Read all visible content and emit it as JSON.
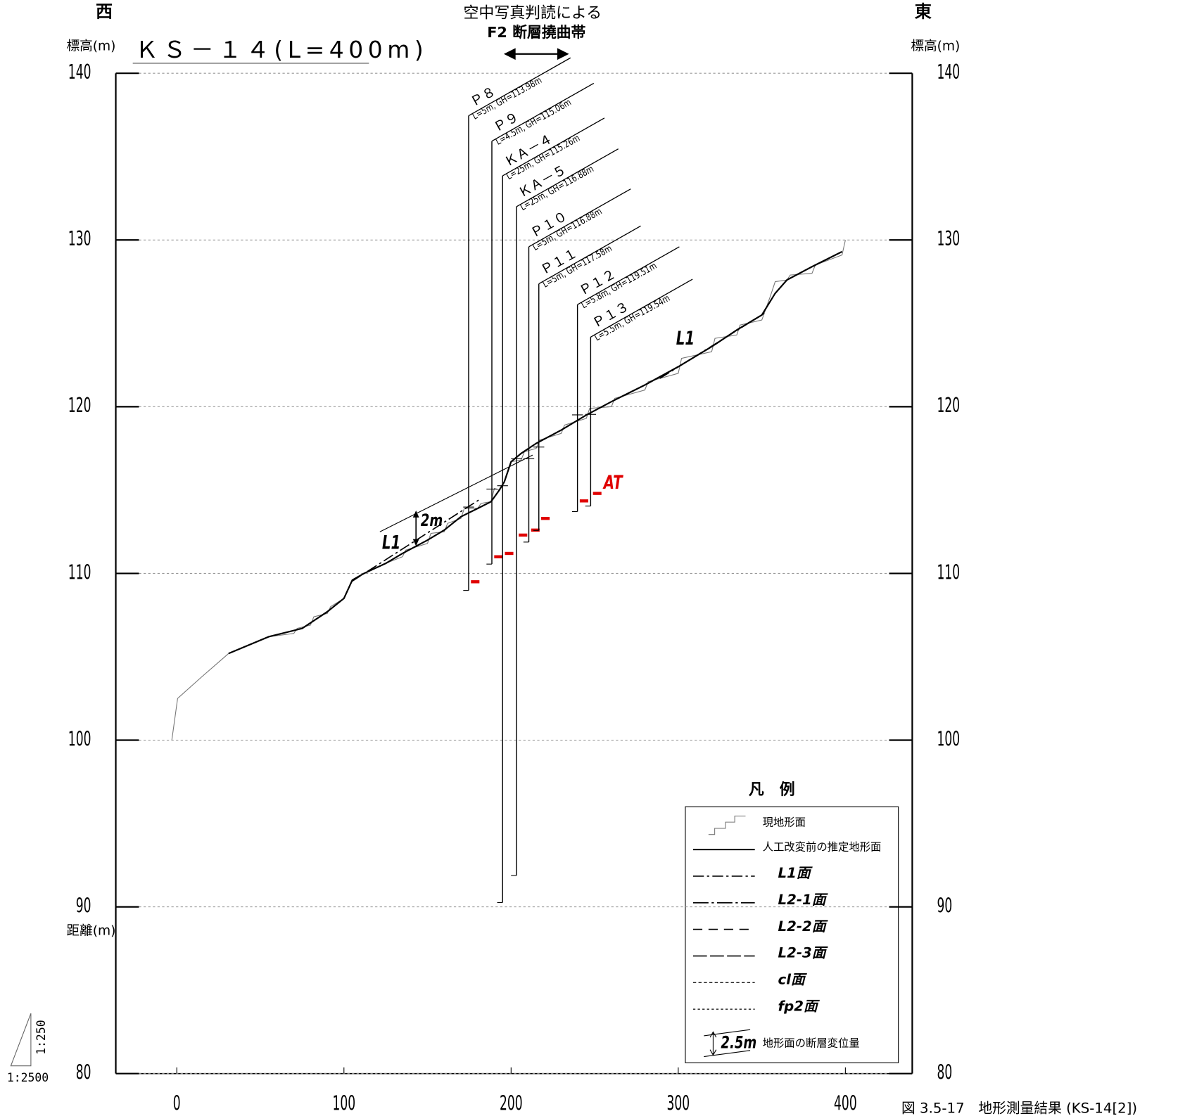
{
  "chart_data": {
    "type": "profile",
    "title": "ＫＳ－１４(L=400m)",
    "west": "西",
    "east": "東",
    "ylabel": "標高(m)",
    "y2label": "標高(m)",
    "xlabel": "距離(m)",
    "xlim": [
      -36.5,
      440
    ],
    "xticks": [
      0,
      100,
      200,
      300,
      400
    ],
    "ylim": [
      80,
      140
    ],
    "yticks": [
      80,
      90,
      100,
      110,
      120,
      130,
      140
    ],
    "grid": true,
    "series": [
      {
        "name": "現地形面",
        "style": "thin",
        "color": "#777777",
        "x": [
          -3,
          0.5,
          15,
          31,
          55,
          70,
          72,
          80,
          82,
          90,
          92,
          100,
          105,
          112,
          125,
          135,
          137,
          150,
          152,
          160,
          162,
          170,
          172,
          180,
          182,
          188,
          190,
          193,
          196,
          200,
          206,
          208,
          215,
          217,
          230,
          232,
          245,
          247,
          260,
          262,
          280,
          282,
          300,
          302,
          320,
          322,
          335,
          337,
          350,
          355,
          358,
          365,
          367,
          380,
          382,
          398,
          400
        ],
        "values": [
          100,
          102.5,
          103.8,
          105.2,
          106.2,
          106.4,
          106.7,
          106.9,
          107.4,
          107.6,
          108.0,
          108.5,
          109.6,
          110.0,
          110.6,
          111.0,
          111.4,
          111.8,
          112.4,
          112.5,
          113.0,
          113.3,
          113.9,
          113.9,
          114.2,
          114.3,
          115.1,
          115.0,
          115.5,
          116.7,
          116.8,
          117.3,
          117.5,
          118.0,
          118.4,
          118.9,
          119.3,
          119.9,
          120.0,
          120.5,
          121.0,
          121.5,
          122.0,
          122.9,
          123.3,
          124.1,
          124.3,
          124.9,
          125.2,
          126.6,
          127.5,
          127.6,
          127.9,
          128.0,
          128.5,
          129.1,
          130.0
        ]
      },
      {
        "name": "人工改変前の推定地形面",
        "style": "solid",
        "color": "#000000",
        "x": [
          31,
          55,
          75,
          90,
          100,
          105,
          112,
          125,
          135,
          150,
          160,
          170,
          180,
          188,
          193,
          196,
          200,
          206,
          215,
          230,
          245,
          260,
          280,
          300,
          320,
          335,
          350,
          358,
          365,
          380,
          398
        ],
        "values": [
          105.2,
          106.2,
          106.7,
          107.7,
          108.5,
          109.6,
          110.0,
          110.6,
          111.2,
          112.0,
          112.6,
          113.4,
          113.9,
          114.3,
          115.0,
          115.5,
          116.7,
          117.2,
          117.8,
          118.6,
          119.5,
          120.3,
          121.3,
          122.4,
          123.6,
          124.6,
          125.5,
          126.8,
          127.6,
          128.4,
          129.3
        ]
      },
      {
        "name": "L1面",
        "style": "dashdot",
        "color": "#000000",
        "x": [
          104.4,
          180.6,
          200,
          289,
          351.5
        ],
        "values": [
          109.5,
          114.4,
          null,
          121.7,
          125.6
        ]
      },
      {
        "name": "L1面",
        "style": "thin",
        "color": "#000000",
        "x": [
          121.5,
          212.9
        ],
        "values": [
          112.5,
          117.1
        ]
      }
    ],
    "boreholes": [
      {
        "label": "Ｐ８",
        "info": "L=5m, GH=113.98m",
        "x": 174.6,
        "gh": 113.98,
        "length": 5,
        "at": 109.5
      },
      {
        "label": "Ｐ９",
        "info": "L=4.5m, GH=115.06m",
        "x": 188.5,
        "gh": 115.06,
        "length": 4.5,
        "at": 111.0
      },
      {
        "label": "ＫＡ－４",
        "info": "L=25m, GH=115.26m",
        "x": 194.9,
        "gh": 115.26,
        "length": 25,
        "at": 111.2
      },
      {
        "label": "ＫＡ－５",
        "info": "L=25m, GH=116.88m",
        "x": 203.2,
        "gh": 116.88,
        "length": 25,
        "at": 112.3
      },
      {
        "label": "Ｐ１０",
        "info": "L=5m, GH=116.88m",
        "x": 210.6,
        "gh": 116.88,
        "length": 5,
        "at": 112.6
      },
      {
        "label": "Ｐ１１",
        "info": "L=5m, GH=117.58m",
        "x": 216.6,
        "gh": 117.58,
        "length": 5,
        "at": 113.3
      },
      {
        "label": "Ｐ１２",
        "info": "L=5.8m, GH=119.51m",
        "x": 239.7,
        "gh": 119.51,
        "length": 5.8,
        "at": 114.35
      },
      {
        "label": "Ｐ１３",
        "info": "L=5.5m, GH=119.54m",
        "x": 247.6,
        "gh": 119.54,
        "length": 5.5,
        "at": 114.8
      }
    ],
    "annotations": {
      "fault_1": "空中写真判読による",
      "fault_2": "F2 断層撓曲帯",
      "l1_a": "L1",
      "l1_b": "L1",
      "offset": "2m",
      "at": "AT"
    },
    "legend": {
      "title": "凡　例",
      "items": [
        {
          "label": "現地形面",
          "style": "step"
        },
        {
          "label": "人工改変前の推定地形面",
          "style": "solid"
        },
        {
          "label": "L1面",
          "style": "dashdot"
        },
        {
          "label": "L2-1面",
          "style": "dashdot2"
        },
        {
          "label": "L2-2面",
          "style": "dash"
        },
        {
          "label": "L2-3面",
          "style": "longdash"
        },
        {
          "label": "cl面",
          "style": "dot"
        },
        {
          "label": "fp2面",
          "style": "dot2"
        },
        {
          "label": "地形面の断層変位量",
          "style": "arrow",
          "sample": "2.5m"
        }
      ]
    },
    "scale_v": "1:250",
    "scale_h": "1:2500",
    "caption": "図 3.5-17　地形測量結果 (KS-14[2])"
  }
}
